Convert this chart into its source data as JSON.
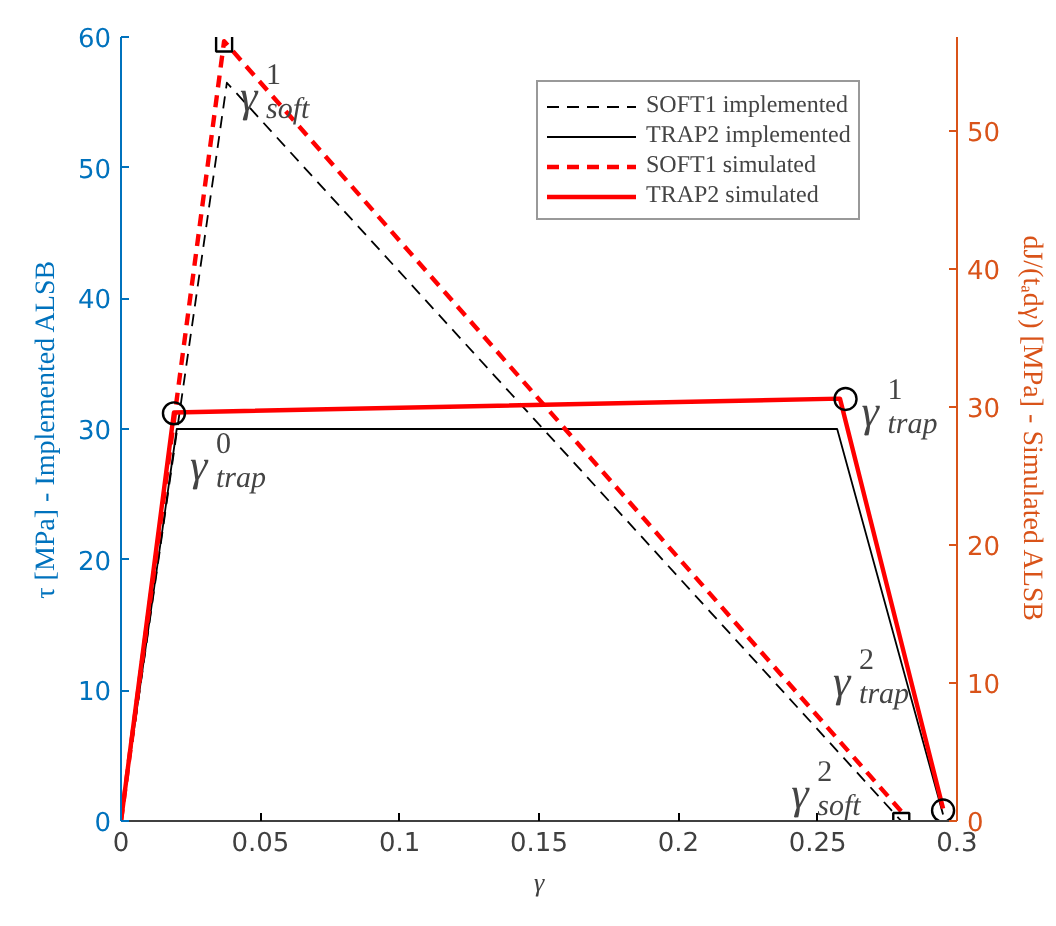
{
  "chart_data": {
    "type": "line",
    "xlabel": "γ",
    "ylabel": "τ [MPa] - Implemented ALSB",
    "y2label": "dJ/(tₐdγ) [MPa] - Simulated ALSB",
    "xlim": [
      0,
      0.3
    ],
    "xticks": [
      0,
      0.05,
      0.1,
      0.15,
      0.2,
      0.25,
      0.3
    ],
    "ylim": [
      0,
      60
    ],
    "yticks": [
      0,
      10,
      20,
      30,
      40,
      50,
      60
    ],
    "y2lim": [
      0,
      56.8
    ],
    "y2ticks": [
      0,
      10,
      20,
      30,
      40,
      50
    ],
    "grid": false,
    "legend": "top right",
    "series": [
      {
        "name": "SOFT1 implemented",
        "color": "#000000",
        "line_style": "dashed",
        "x": [
          0,
          0.038,
          0.28
        ],
        "values": [
          0,
          56.5,
          0
        ]
      },
      {
        "name": "TRAP2 implemented",
        "color": "#000000",
        "line_style": "solid",
        "x": [
          0,
          0.02,
          0.257,
          0.295
        ],
        "values": [
          0,
          30,
          30,
          0.5
        ]
      },
      {
        "name": "SOFT1 simulated",
        "color": "#ff0000",
        "line_style": "dashed",
        "axis": "y2",
        "x": [
          0,
          0.037,
          0.28
        ],
        "values": [
          0,
          56.5,
          0.7
        ]
      },
      {
        "name": "TRAP2 simulated",
        "color": "#ff0000",
        "line_style": "solid",
        "axis": "y2",
        "x": [
          0,
          0.019,
          0.258,
          0.295
        ],
        "values": [
          0,
          29.6,
          30.6,
          0.9
        ]
      },
      {
        "type": "scatter",
        "marker": "square",
        "color": "#000000",
        "x": [
          0.037,
          0.28
        ],
        "values": [
          59.5,
          0
        ]
      },
      {
        "type": "scatter",
        "marker": "circle",
        "color": "#000000",
        "x": [
          0.019,
          0.26,
          0.295
        ],
        "values": [
          31.2,
          32.3,
          0.8
        ]
      }
    ],
    "annotations": [
      {
        "text": "γ$^{1}$$_{soft}$",
        "x": 0.037,
        "y": 59.5
      },
      {
        "text": "γ$^{0}$$_{trap}$",
        "x": 0.019,
        "y": 31.2
      },
      {
        "text": "γ$^{1}$$_{trap}$",
        "x": 0.26,
        "y": 32.3
      },
      {
        "text": "γ$^{2}$$_{soft}$",
        "x": 0.28,
        "y": 0
      },
      {
        "text": "γ$^{2}$$_{trap}$",
        "x": 0.295,
        "y": 0.8
      }
    ]
  }
}
